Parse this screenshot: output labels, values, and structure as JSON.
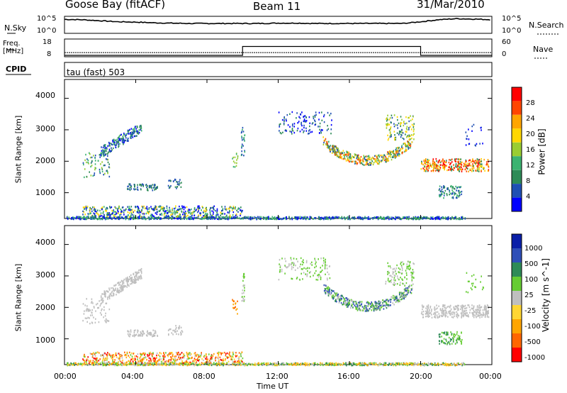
{
  "header": {
    "radar": "Goose Bay (fitACF)",
    "beam": "Beam 11",
    "date": "31/Mar/2010",
    "mode": "tau (fast) 503"
  },
  "colors": {
    "power": [
      "#0000ff",
      "#1f4fb4",
      "#2e8b57",
      "#3cb371",
      "#9acd32",
      "#ffd700",
      "#ffa500",
      "#ff4500",
      "#ff0000"
    ],
    "velocity": [
      "#0a1fa8",
      "#2f4fb8",
      "#2e8b57",
      "#66cc33",
      "#bfbfbf",
      "#ffd633",
      "#ffa500",
      "#ff6600",
      "#ff0000"
    ]
  },
  "chart_data": [
    {
      "type": "line",
      "panel": "noise",
      "left_label": "N.Sky",
      "right_label": "N.Search",
      "left_ticks": [
        "10^5",
        "10^0"
      ],
      "right_ticks": [
        "10^5",
        "10^0"
      ],
      "x": [
        0,
        1,
        2,
        3,
        4,
        5,
        6,
        7,
        8,
        9,
        10,
        11,
        12,
        13,
        14,
        15,
        16,
        17,
        18,
        19,
        20,
        21,
        22,
        23,
        24
      ],
      "values": [
        4.1,
        4.0,
        3.7,
        3.4,
        3.3,
        3.1,
        3.0,
        2.9,
        2.9,
        2.9,
        2.9,
        2.9,
        3.0,
        3.0,
        2.9,
        2.9,
        2.9,
        2.9,
        2.9,
        2.9,
        3.4,
        4.0,
        4.3,
        4.2,
        4.0
      ]
    },
    {
      "type": "line",
      "panel": "frequency",
      "left_label": "Freq. [MHz]",
      "right_label": "Nave",
      "left_ticks": [
        "18",
        "8"
      ],
      "right_ticks": [
        "60",
        "0"
      ],
      "series": [
        {
          "name": "Freq.",
          "x": [
            0,
            24
          ],
          "values": [
            8,
            8
          ]
        },
        {
          "name": "Nave",
          "x": [
            0,
            10,
            10,
            20,
            20,
            24
          ],
          "values": [
            0,
            0,
            30,
            30,
            0,
            0
          ]
        }
      ]
    },
    {
      "type": "scatter",
      "panel": "power",
      "ylabel": "Slant Range [km]",
      "colorbar_label": "Power [dB]",
      "colorbar_ticks": [
        "28",
        "24",
        "20",
        "16",
        "12",
        "8",
        "4"
      ],
      "yticks": [
        "4000",
        "3000",
        "2000",
        "1000"
      ],
      "ylim": [
        180,
        4600
      ],
      "xlim": [
        0,
        24
      ]
    },
    {
      "type": "scatter",
      "panel": "velocity",
      "ylabel": "Slant Range [km]",
      "colorbar_label": "Velocity [m s^-1]",
      "colorbar_ticks": [
        "1000",
        "500",
        "100",
        "25",
        "-25",
        "-100",
        "-500",
        "-1000"
      ],
      "yticks": [
        "4000",
        "3000",
        "2000",
        "1000"
      ],
      "ylim": [
        180,
        4600
      ],
      "xlim": [
        0,
        24
      ]
    }
  ],
  "xaxis": {
    "ticks": [
      "00:00",
      "04:00",
      "08:00",
      "12:00",
      "16:00",
      "20:00",
      "00:00"
    ],
    "label": "Time UT"
  },
  "cpid_label": "CPID"
}
